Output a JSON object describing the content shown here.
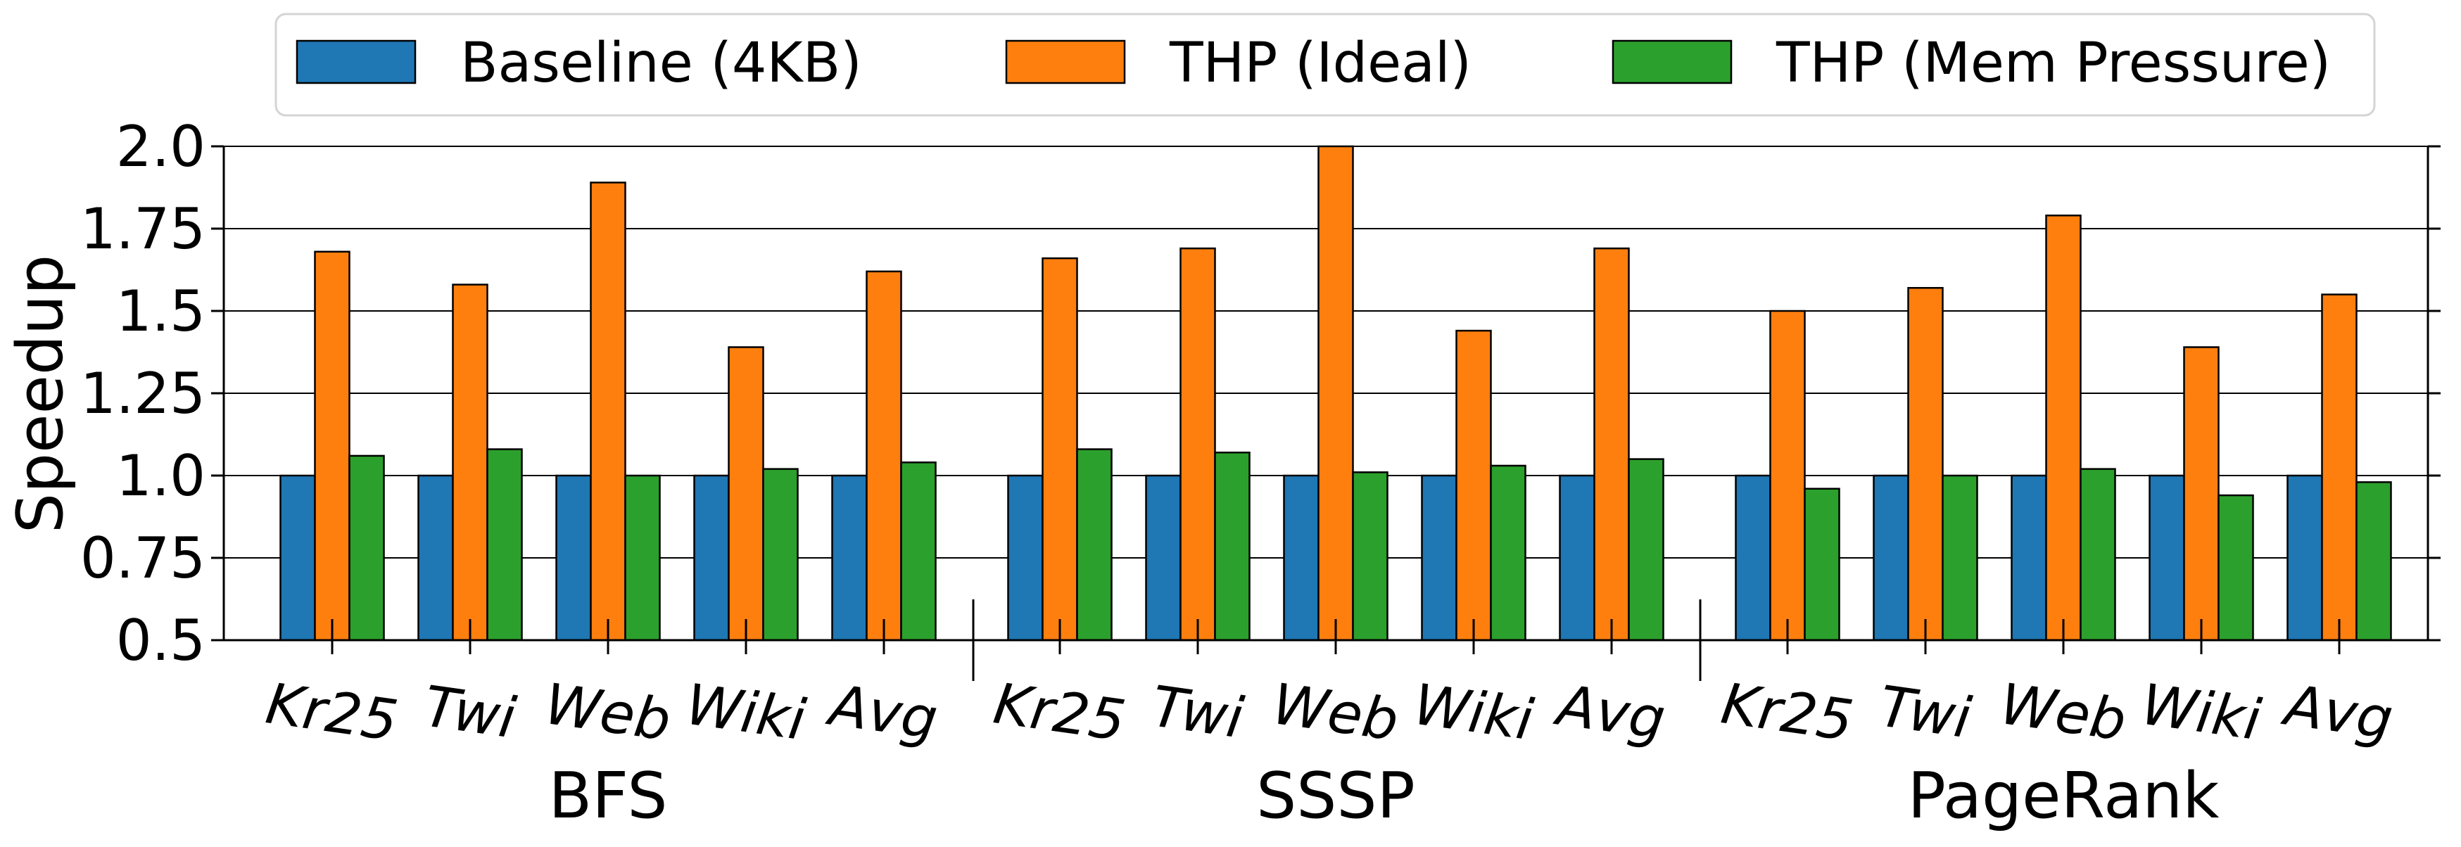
{
  "chart_data": {
    "type": "bar",
    "ylabel": "Speedup",
    "ylim": [
      0.5,
      2.0
    ],
    "yticks": [
      "0.5",
      "0.75",
      "1.0",
      "1.25",
      "1.5",
      "1.75",
      "2.0"
    ],
    "grid": "horizontal",
    "legend_position": "top",
    "series": [
      {
        "name": "Baseline (4KB)",
        "color": "#1f77b4"
      },
      {
        "name": "THP (Ideal)",
        "color": "#ff7f0e"
      },
      {
        "name": "THP (Mem Pressure)",
        "color": "#2ca02c"
      }
    ],
    "groups": [
      {
        "name": "BFS",
        "categories": [
          "Kr25",
          "Twi",
          "Web",
          "Wiki",
          "Avg"
        ],
        "values": [
          [
            1.0,
            1.0,
            1.0,
            1.0,
            1.0
          ],
          [
            1.68,
            1.58,
            1.89,
            1.39,
            1.62
          ],
          [
            1.06,
            1.08,
            1.0,
            1.02,
            1.04
          ]
        ]
      },
      {
        "name": "SSSP",
        "categories": [
          "Kr25",
          "Twi",
          "Web",
          "Wiki",
          "Avg"
        ],
        "values": [
          [
            1.0,
            1.0,
            1.0,
            1.0,
            1.0
          ],
          [
            1.66,
            1.69,
            2.0,
            1.44,
            1.69
          ],
          [
            1.08,
            1.07,
            1.01,
            1.03,
            1.05
          ]
        ]
      },
      {
        "name": "PageRank",
        "categories": [
          "Kr25",
          "Twi",
          "Web",
          "Wiki",
          "Avg"
        ],
        "values": [
          [
            1.0,
            1.0,
            1.0,
            1.0,
            1.0
          ],
          [
            1.5,
            1.57,
            1.79,
            1.39,
            1.55
          ],
          [
            0.96,
            1.0,
            1.02,
            0.94,
            0.98
          ]
        ]
      }
    ]
  }
}
